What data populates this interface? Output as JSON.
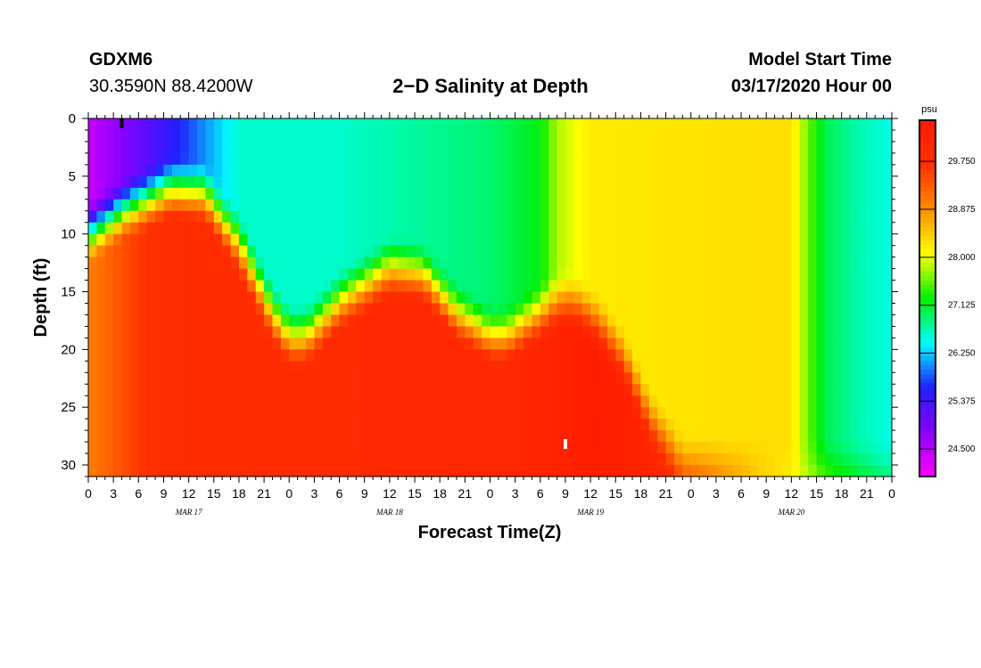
{
  "header": {
    "station": "GDXM6",
    "coords": "30.3590N 88.4200W",
    "title": "2−D Salinity at Depth",
    "model_start_label": "Model Start Time",
    "model_start_value": "03/17/2020 Hour 00"
  },
  "chart_data": {
    "type": "heatmap",
    "title": "2−D Salinity at Depth",
    "xlabel": "Forecast Time(Z)",
    "ylabel": "Depth (ft)",
    "x_hours_range": [
      0,
      96
    ],
    "y_depth_range": [
      0,
      31
    ],
    "x_tick_labels": [
      "0",
      "3",
      "6",
      "9",
      "12",
      "15",
      "18",
      "21",
      "0",
      "3",
      "6",
      "9",
      "12",
      "15",
      "18",
      "21",
      "0",
      "3",
      "6",
      "9",
      "12",
      "15",
      "18",
      "21",
      "0",
      "3",
      "6",
      "9",
      "12",
      "15",
      "18",
      "21",
      "0"
    ],
    "y_ticks": [
      0,
      5,
      10,
      15,
      20,
      25,
      30
    ],
    "y_tick_labels": [
      "0",
      "5",
      "10",
      "15",
      "20",
      "25",
      "30"
    ],
    "date_labels": [
      {
        "label": "MAR 17",
        "hour": 12
      },
      {
        "label": "MAR 18",
        "hour": 36
      },
      {
        "label": "MAR 19",
        "hour": 60
      },
      {
        "label": "MAR 20",
        "hour": 84
      }
    ],
    "colorbar": {
      "unit": "psu",
      "min": 24.0,
      "max": 30.5,
      "tick_values": [
        29.75,
        28.875,
        28.0,
        27.125,
        26.25,
        25.375,
        24.5
      ],
      "tick_labels": [
        "29.750",
        "28.875",
        "28.000",
        "27.125",
        "26.250",
        "25.375",
        "24.500"
      ],
      "colors": [
        "#ff00ff",
        "#8a00ff",
        "#2020ff",
        "#00ffff",
        "#00ee00",
        "#ffff00",
        "#ff8c00",
        "#ff3000",
        "#ff1a00"
      ]
    },
    "surface_salinity_psu": [
      {
        "hour": 0,
        "value": 24.4
      },
      {
        "hour": 10,
        "value": 25.5
      },
      {
        "hour": 18,
        "value": 26.6
      },
      {
        "hour": 30,
        "value": 26.6
      },
      {
        "hour": 48,
        "value": 26.9
      },
      {
        "hour": 54,
        "value": 27.2
      },
      {
        "hour": 56,
        "value": 27.8
      },
      {
        "hour": 60,
        "value": 28.2
      },
      {
        "hour": 84,
        "value": 28.3
      },
      {
        "hour": 86,
        "value": 27.6
      },
      {
        "hour": 88,
        "value": 27.0
      },
      {
        "hour": 92,
        "value": 26.7
      },
      {
        "hour": 96,
        "value": 26.5
      }
    ],
    "halocline_depth_ft": [
      {
        "hour": 0,
        "value": 10
      },
      {
        "hour": 4,
        "value": 8
      },
      {
        "hour": 10,
        "value": 6
      },
      {
        "hour": 14,
        "value": 6.5
      },
      {
        "hour": 18,
        "value": 11
      },
      {
        "hour": 22,
        "value": 17
      },
      {
        "hour": 24,
        "value": 19
      },
      {
        "hour": 26,
        "value": 19
      },
      {
        "hour": 30,
        "value": 16
      },
      {
        "hour": 36,
        "value": 13
      },
      {
        "hour": 40,
        "value": 13.5
      },
      {
        "hour": 44,
        "value": 17
      },
      {
        "hour": 48,
        "value": 19
      },
      {
        "hour": 50,
        "value": 19
      },
      {
        "hour": 53,
        "value": 17.5
      },
      {
        "hour": 56,
        "value": 16
      },
      {
        "hour": 58,
        "value": 16
      },
      {
        "hour": 61,
        "value": 18
      },
      {
        "hour": 64,
        "value": 21
      },
      {
        "hour": 67,
        "value": 26
      },
      {
        "hour": 71,
        "value": 30
      },
      {
        "hour": 80,
        "value": 30
      },
      {
        "hour": 90,
        "value": 30.5
      },
      {
        "hour": 96,
        "value": 30.5
      }
    ],
    "bottom_salinity_psu": [
      {
        "hour": 0,
        "value": 29.0
      },
      {
        "hour": 8,
        "value": 29.8
      },
      {
        "hour": 30,
        "value": 29.9
      },
      {
        "hour": 55,
        "value": 30.1
      },
      {
        "hour": 60,
        "value": 30.4
      },
      {
        "hour": 66,
        "value": 30.2
      },
      {
        "hour": 70,
        "value": 29.8
      },
      {
        "hour": 80,
        "value": 28.5
      },
      {
        "hour": 96,
        "value": 27.0
      }
    ],
    "markers": [
      {
        "hour": 4,
        "depth": 0.2,
        "color": "#000000"
      },
      {
        "hour": 57,
        "depth": 28,
        "color": "#ffffff"
      }
    ]
  }
}
